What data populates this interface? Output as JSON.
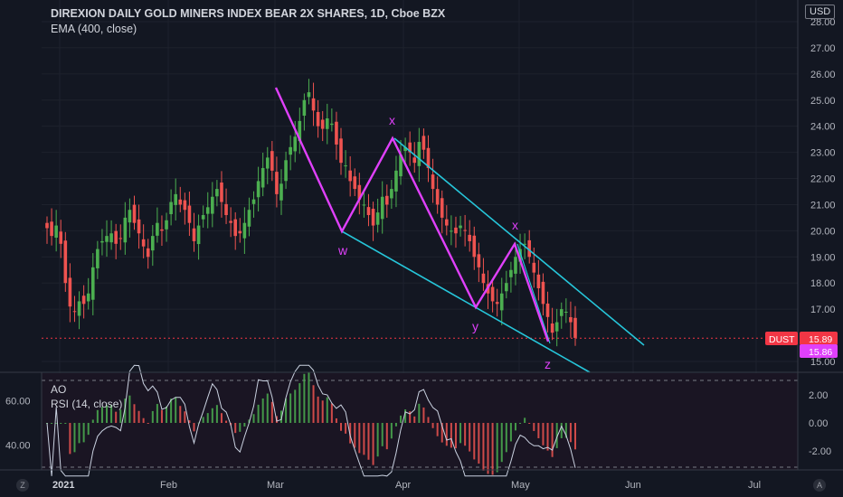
{
  "header": {
    "title": "DIREXION DAILY GOLD MINERS INDEX BEAR 2X SHARES, 1D, Cboe BZX",
    "indicator": "EMA (400, close)",
    "currency": "USD"
  },
  "price_axis": {
    "ticks": [
      "28.00",
      "27.00",
      "26.00",
      "25.00",
      "24.00",
      "23.00",
      "22.00",
      "21.00",
      "20.00",
      "19.00",
      "18.00",
      "17.00",
      "15.00"
    ]
  },
  "price_tags": [
    {
      "label": "DUST",
      "value": "15.89",
      "bg": "#f23645",
      "fg": "#ffffff"
    },
    {
      "label": "",
      "value": "15.86",
      "bg": "#e040fb",
      "fg": "#ffffff"
    }
  ],
  "wave_labels": [
    "x",
    "w",
    "x",
    "y",
    "z"
  ],
  "lower_pane": {
    "ao_label": "AO",
    "rsi_label": "RSI (14, close)",
    "left_ticks": [
      "60.00",
      "40.00"
    ],
    "right_ticks": [
      "2.00",
      "0.00",
      "-2.00"
    ]
  },
  "time_axis": {
    "labels": [
      "2021",
      "Feb",
      "Mar",
      "Apr",
      "May",
      "Jun",
      "Jul"
    ]
  },
  "footer": {
    "left_btn": "Z",
    "right_btn": "A"
  },
  "colors": {
    "background": "#131722",
    "up": "#26a69a",
    "up_bright": "#4caf50",
    "down": "#ef5350",
    "pattern": "#e040fb",
    "channel": "#26c6da",
    "rsi_line": "#c9d1e0",
    "price_line": "#f23645"
  },
  "chart_data": [
    {
      "type": "candlestick",
      "title": "DIREXION DAILY GOLD MINERS INDEX BEAR 2X SHARES, 1D, Cboe BZX",
      "ylim": [
        15.0,
        28.0
      ],
      "x_labels": [
        "2021",
        "Feb",
        "Mar",
        "Apr",
        "May",
        "Jun",
        "Jul"
      ],
      "last_price": 15.89,
      "ema_value": 15.86,
      "candles_close": [
        20.1,
        19.8,
        20.2,
        19.5,
        18.0,
        17.1,
        16.9,
        17.3,
        17.2,
        17.6,
        18.6,
        19.3,
        19.6,
        19.8,
        19.9,
        19.5,
        19.7,
        20.5,
        20.8,
        20.3,
        19.9,
        19.4,
        19.0,
        19.8,
        20.3,
        20.0,
        20.4,
        21.1,
        21.4,
        21.0,
        20.8,
        20.3,
        19.6,
        20.2,
        20.6,
        20.9,
        21.3,
        21.6,
        21.1,
        20.6,
        20.3,
        19.8,
        19.9,
        20.3,
        20.8,
        21.2,
        21.9,
        22.4,
        22.8,
        22.3,
        21.4,
        21.8,
        22.7,
        23.2,
        23.6,
        24.2,
        25.0,
        25.3,
        24.6,
        24.0,
        23.9,
        24.3,
        24.1,
        23.3,
        22.6,
        22.5,
        21.9,
        21.6,
        21.2,
        21.0,
        20.6,
        20.2,
        20.7,
        21.3,
        21.0,
        21.6,
        22.3,
        22.9,
        23.2,
        23.0,
        22.6,
        23.4,
        23.1,
        22.4,
        21.6,
        21.0,
        20.5,
        20.2,
        20.0,
        19.9,
        20.2,
        20.0,
        19.6,
        19.0,
        18.6,
        18.0,
        17.6,
        17.3,
        17.2,
        17.6,
        18.0,
        18.5,
        19.0,
        19.3,
        19.5,
        19.0,
        18.4,
        17.8,
        17.2,
        16.7,
        16.1,
        16.5,
        17.0,
        16.9,
        16.5,
        15.9
      ],
      "pattern_points": [
        {
          "date": "2021-03-01",
          "price": 25.4,
          "label": ""
        },
        {
          "date": "2021-03-15",
          "price": 20.0,
          "label": "w"
        },
        {
          "date": "2021-03-26",
          "price": 23.5,
          "label": "x"
        },
        {
          "date": "2021-04-21",
          "price": 17.1,
          "label": "y"
        },
        {
          "date": "2021-04-30",
          "price": 19.6,
          "label": "x"
        },
        {
          "date": "2021-05-10",
          "price": 15.7,
          "label": "z"
        }
      ]
    },
    {
      "type": "bar",
      "title": "AO",
      "ylim": [
        -3.2,
        3.3
      ],
      "right_ticks": [
        "2.00",
        "0.00",
        "-2.00"
      ]
    },
    {
      "type": "line",
      "title": "RSI (14, close)",
      "ylim": [
        24,
        80
      ],
      "left_ticks": [
        "60.00",
        "40.00"
      ]
    }
  ]
}
